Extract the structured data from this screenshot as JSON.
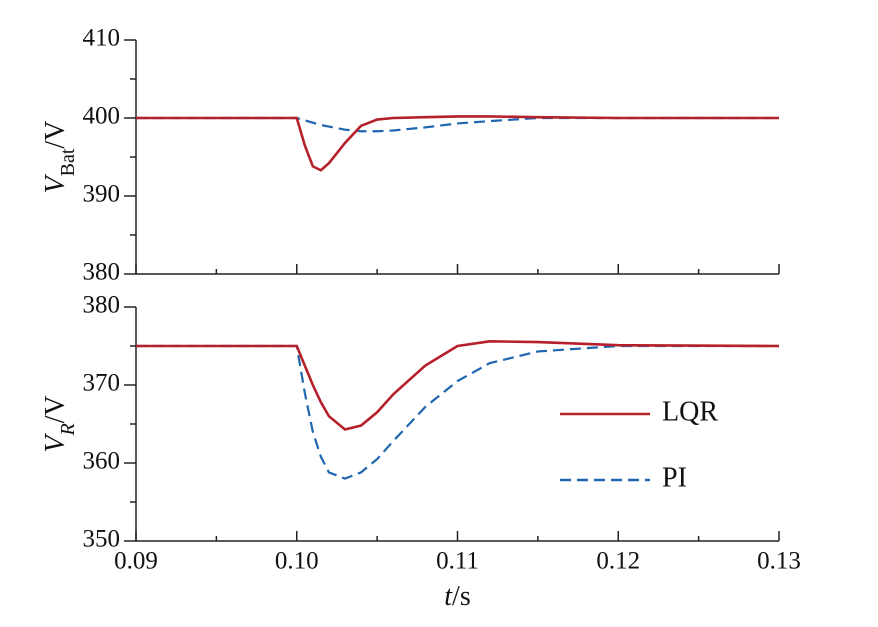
{
  "chart_data": [
    {
      "type": "line",
      "ylabel": {
        "main": "V",
        "sub": "Bat",
        "unit": "/V"
      },
      "x": [
        0.09,
        0.1,
        0.1005,
        0.101,
        0.1015,
        0.102,
        0.103,
        0.104,
        0.105,
        0.106,
        0.108,
        0.11,
        0.112,
        0.115,
        0.12,
        0.13
      ],
      "series": [
        {
          "name": "LQR",
          "color": "#b5202a",
          "dash": "solid",
          "values": [
            400,
            400,
            396.5,
            393.8,
            393.3,
            394.2,
            396.8,
            399.0,
            399.8,
            400.0,
            400.1,
            400.2,
            400.2,
            400.1,
            400,
            400
          ]
        },
        {
          "name": "PI",
          "color": "#1f66b0",
          "dash": "dashed",
          "values": [
            400,
            400,
            399.7,
            399.4,
            399.1,
            398.9,
            398.5,
            398.3,
            398.3,
            398.4,
            398.8,
            399.3,
            399.6,
            400,
            400,
            400
          ]
        }
      ],
      "ylim": [
        380,
        410
      ],
      "yticks": [
        380,
        390,
        400,
        410
      ]
    },
    {
      "type": "line",
      "ylabel": {
        "main": "V",
        "sub": "R",
        "unit": "/V"
      },
      "xlabel": {
        "main": "t",
        "unit": "/s"
      },
      "x": [
        0.09,
        0.1,
        0.1005,
        0.101,
        0.1015,
        0.102,
        0.103,
        0.104,
        0.105,
        0.106,
        0.108,
        0.11,
        0.112,
        0.115,
        0.12,
        0.13
      ],
      "series": [
        {
          "name": "LQR",
          "color": "#b5202a",
          "dash": "solid",
          "values": [
            375,
            375,
            372.5,
            370,
            367.8,
            366,
            364.3,
            364.8,
            366.5,
            368.8,
            372.5,
            375,
            375.6,
            375.5,
            375.1,
            375
          ]
        },
        {
          "name": "PI",
          "color": "#1f66b0",
          "dash": "dashed",
          "values": [
            375,
            375,
            369,
            364,
            360.8,
            358.8,
            358,
            358.8,
            360.5,
            362.8,
            367.2,
            370.5,
            372.8,
            374.3,
            375,
            375
          ]
        }
      ],
      "xlim": [
        0.09,
        0.13
      ],
      "xticks": [
        0.09,
        {
          "value": 0.1,
          "label": "0.10"
        },
        0.11,
        0.12,
        0.13
      ],
      "ylim": [
        350,
        380
      ],
      "yticks": [
        350,
        360,
        370,
        380
      ],
      "legend": "right"
    }
  ]
}
